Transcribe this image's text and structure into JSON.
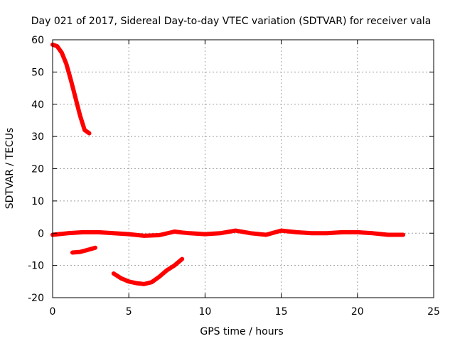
{
  "chart_data": {
    "type": "line",
    "title": "Day 021 of 2017, Sidereal Day-to-day VTEC variation (SDTVAR) for receiver vala",
    "xlabel": "GPS time / hours",
    "ylabel": "SDTVAR / TECUs",
    "xlim": [
      0,
      25
    ],
    "ylim": [
      -20,
      60
    ],
    "xticks": [
      0,
      5,
      10,
      15,
      20,
      25
    ],
    "yticks": [
      -20,
      -10,
      0,
      10,
      20,
      30,
      40,
      50,
      60
    ],
    "grid": true,
    "legend": "none",
    "series_color": "#ff0000",
    "series": [
      {
        "name": "segment-1",
        "x": [
          0.0,
          0.3,
          0.6,
          0.9,
          1.2,
          1.5,
          1.8,
          2.1,
          2.4
        ],
        "y": [
          58.5,
          58.0,
          56.0,
          52.5,
          47.5,
          42.0,
          36.5,
          32.0,
          31.0
        ]
      },
      {
        "name": "segment-2",
        "x": [
          0.0,
          1.0,
          2.0,
          3.0,
          4.0,
          5.0,
          6.0,
          7.0,
          8.0,
          8.5,
          9.0,
          10.0,
          11.0,
          12.0,
          13.0,
          14.0,
          15.0,
          16.0,
          17.0,
          18.0,
          19.0,
          20.0,
          21.0,
          22.0,
          23.0
        ],
        "y": [
          -0.5,
          0.0,
          0.3,
          0.3,
          0.0,
          -0.3,
          -0.8,
          -0.6,
          0.5,
          0.2,
          0.0,
          -0.3,
          0.0,
          0.8,
          0.0,
          -0.5,
          0.8,
          0.3,
          0.0,
          0.0,
          0.3,
          0.3,
          0.0,
          -0.5,
          -0.5
        ]
      },
      {
        "name": "segment-3",
        "x": [
          1.3,
          1.8,
          2.3,
          2.8
        ],
        "y": [
          -6.0,
          -5.8,
          -5.2,
          -4.5
        ]
      },
      {
        "name": "segment-4",
        "x": [
          4.0,
          4.5,
          5.0,
          5.5,
          6.0,
          6.5,
          7.0,
          7.5,
          8.0,
          8.5
        ],
        "y": [
          -12.5,
          -14.0,
          -15.0,
          -15.5,
          -15.8,
          -15.2,
          -13.5,
          -11.5,
          -10.0,
          -8.0
        ]
      }
    ]
  }
}
